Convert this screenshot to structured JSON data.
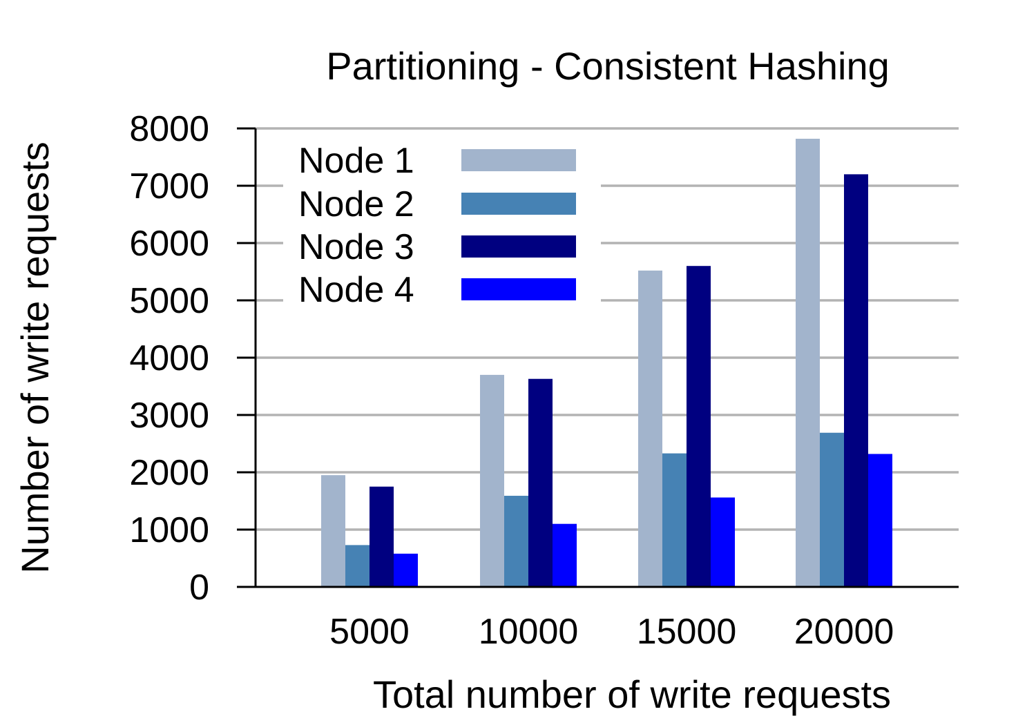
{
  "chart_data": {
    "type": "bar",
    "title": "Partitioning - Consistent Hashing",
    "xlabel": "Total number of write requests",
    "ylabel": "Number of write requests",
    "categories": [
      "5000",
      "10000",
      "15000",
      "20000"
    ],
    "ylim": [
      0,
      8000
    ],
    "yticks": [
      0,
      1000,
      2000,
      3000,
      4000,
      5000,
      6000,
      7000,
      8000
    ],
    "grid": true,
    "legend_position": "top-left",
    "series": [
      {
        "name": "Node 1",
        "color": "#a2b4cc",
        "values": [
          1950,
          3700,
          5520,
          7820
        ]
      },
      {
        "name": "Node 2",
        "color": "#4682b4",
        "values": [
          730,
          1590,
          2330,
          2690
        ]
      },
      {
        "name": "Node 3",
        "color": "#000080",
        "values": [
          1750,
          3630,
          5600,
          7200
        ]
      },
      {
        "name": "Node 4",
        "color": "#0000ff",
        "values": [
          580,
          1100,
          1560,
          2320
        ]
      }
    ]
  }
}
